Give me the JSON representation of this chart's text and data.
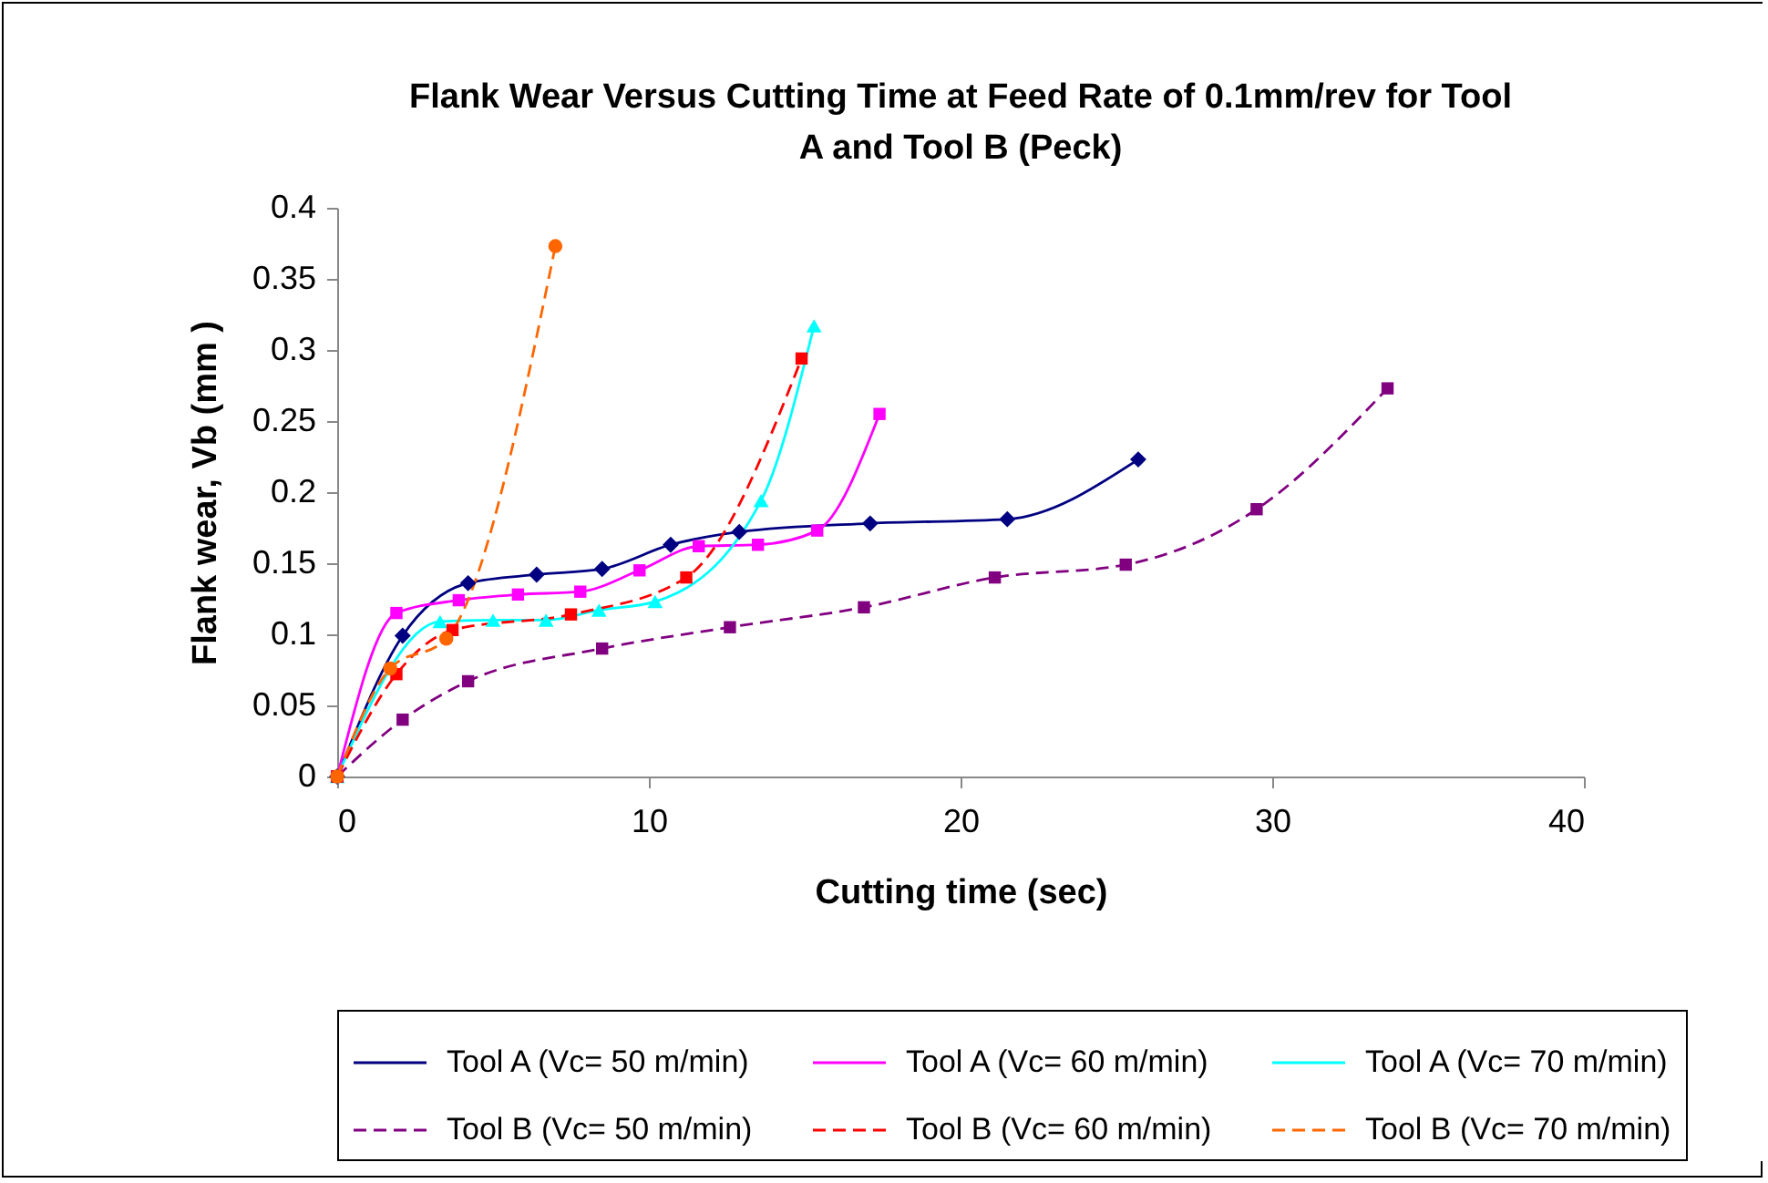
{
  "chart_data": {
    "type": "line",
    "title": "Flank Wear Versus Cutting Time at Feed Rate of 0.1mm/rev for Tool A and Tool B (Peck)",
    "xlabel": "Cutting time (sec)",
    "ylabel": "Flank wear, Vb (mm )",
    "xlim": [
      0,
      40
    ],
    "xticks": [
      0,
      10,
      20,
      30,
      40
    ],
    "ylim": [
      0,
      0.4
    ],
    "yticks": [
      0,
      0.05,
      0.1,
      0.15,
      0.2,
      0.25,
      0.3,
      0.35,
      0.4
    ],
    "grid": false,
    "legend": "bottom",
    "series": [
      {
        "name": "Tool A (Vc= 50 m/min)",
        "color": "#000080",
        "marker": "diamond",
        "line_style": "solid",
        "x": [
          0,
          2.1,
          4.2,
          6.4,
          8.5,
          10.7,
          12.9,
          17.1,
          21.5,
          25.7
        ],
        "values": [
          0,
          0.099,
          0.136,
          0.142,
          0.146,
          0.163,
          0.172,
          0.178,
          0.181,
          0.223
        ]
      },
      {
        "name": "Tool A (Vc= 60 m/min)",
        "color": "#ff00ff",
        "marker": "square",
        "line_style": "solid",
        "x": [
          0,
          1.9,
          3.9,
          5.8,
          7.8,
          9.7,
          11.6,
          13.5,
          15.4,
          17.4
        ],
        "values": [
          0,
          0.115,
          0.124,
          0.128,
          0.13,
          0.145,
          0.162,
          0.163,
          0.173,
          0.255
        ]
      },
      {
        "name": "Tool A (Vc= 70 m/min)",
        "color": "#00ffff",
        "marker": "triangle",
        "line_style": "solid",
        "x": [
          0,
          3.3,
          5.0,
          6.7,
          8.4,
          10.2,
          13.6,
          15.3
        ],
        "values": [
          0,
          0.109,
          0.11,
          0.11,
          0.117,
          0.123,
          0.194,
          0.317
        ]
      },
      {
        "name": "Tool B (Vc= 50 m/min)",
        "color": "#800080",
        "marker": "square",
        "line_style": "dashed",
        "x": [
          0,
          2.1,
          4.2,
          8.5,
          12.6,
          16.9,
          21.1,
          25.3,
          29.5,
          33.7
        ],
        "values": [
          0,
          0.04,
          0.067,
          0.09,
          0.105,
          0.119,
          0.14,
          0.149,
          0.188,
          0.273
        ]
      },
      {
        "name": "Tool B (Vc= 60 m/min)",
        "color": "#ff0000",
        "marker": "square",
        "line_style": "dashed",
        "x": [
          0,
          1.9,
          3.7,
          7.5,
          11.2,
          14.9
        ],
        "values": [
          0,
          0.072,
          0.103,
          0.114,
          0.14,
          0.294
        ]
      },
      {
        "name": "Tool B (Vc= 70 m/min)",
        "color": "#ff6600",
        "marker": "circle",
        "line_style": "dashed",
        "x": [
          0,
          1.7,
          3.5,
          7.0
        ],
        "values": [
          0,
          0.076,
          0.097,
          0.373
        ]
      }
    ]
  }
}
